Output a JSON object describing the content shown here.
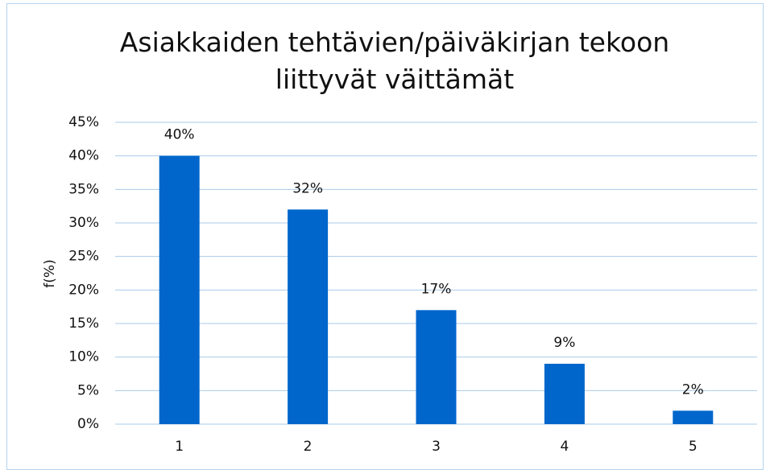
{
  "chart_data": {
    "type": "bar",
    "title": "Asiakkaiden tehtävien/päiväkirjan tekoon liittyvät väittämät",
    "y_label": "f(%)",
    "categories": [
      "1",
      "2",
      "3",
      "4",
      "5"
    ],
    "values": [
      40,
      32,
      17,
      9,
      2
    ],
    "value_labels": [
      "40%",
      "32%",
      "17%",
      "9%",
      "2%"
    ],
    "color": "#0066cc",
    "ylim": [
      0,
      45
    ],
    "yticks": [
      {
        "value": 0,
        "label": "0%"
      },
      {
        "value": 5,
        "label": "5%"
      },
      {
        "value": 10,
        "label": "10%"
      },
      {
        "value": 15,
        "label": "15%"
      },
      {
        "value": 20,
        "label": "20%"
      },
      {
        "value": 25,
        "label": "25%"
      },
      {
        "value": 30,
        "label": "30%"
      },
      {
        "value": 35,
        "label": "35%"
      },
      {
        "value": 40,
        "label": "40%"
      },
      {
        "value": 45,
        "label": "45%"
      }
    ],
    "grid": true
  }
}
